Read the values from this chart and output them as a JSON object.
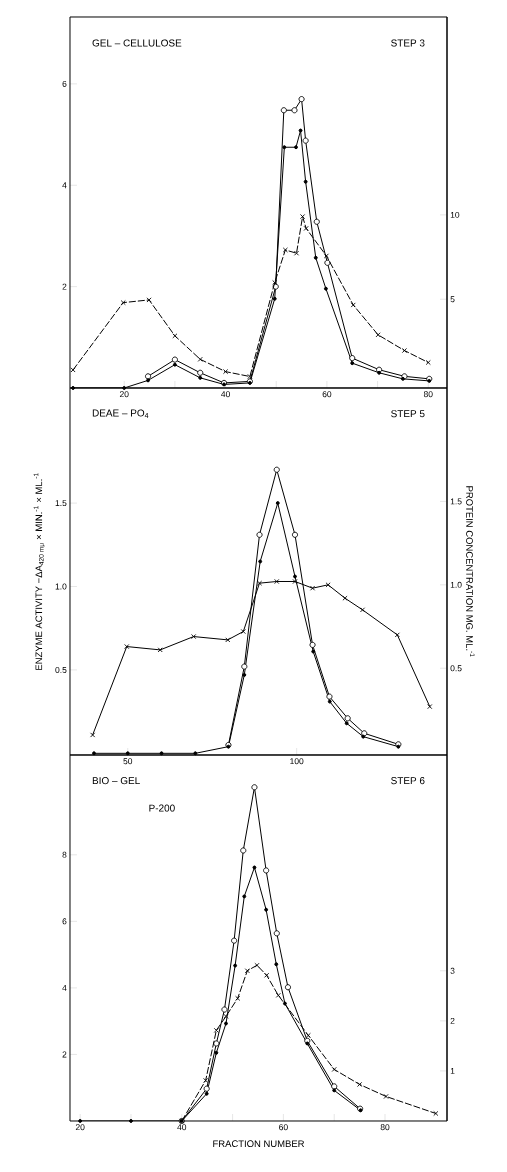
{
  "chart_data": [
    {
      "type": "line",
      "annotations": [
        "GEL – CELLULOSE",
        "STEP 3"
      ],
      "xlim": [
        9.3,
        83.7
      ],
      "ylim": [
        0,
        7.32
      ],
      "y2lim": [
        -0.26,
        21.73
      ],
      "xticks": [
        20,
        {
          "value": 30,
          "label": null
        },
        40,
        {
          "value": 50,
          "label": null
        },
        60,
        {
          "value": 70,
          "label": null
        },
        80
      ],
      "yticks": [
        2,
        4,
        6
      ],
      "y2ticks": [
        5,
        10
      ],
      "series": [
        {
          "color": "#000000",
          "marker": "circle",
          "line_style": "solid",
          "x": [
            24.7,
            30,
            35,
            39.7,
            44.8,
            49.9,
            51.5,
            53.6,
            55,
            55.8,
            58,
            60.1,
            65,
            70.3,
            75.3,
            80.2
          ],
          "values": [
            0.23,
            0.56,
            0.3,
            0.1,
            0.13,
            2.0,
            5.48,
            5.48,
            5.7,
            4.88,
            3.28,
            2.47,
            0.59,
            0.36,
            0.23,
            0.18
          ]
        },
        {
          "color": "#000000",
          "marker": "dot",
          "line_style": "solid",
          "x": [
            9.9,
            20,
            24.7,
            30,
            35,
            39.7,
            44.8,
            49.7,
            51.6,
            53.9,
            54.8,
            55.8,
            57.8,
            59.8,
            65,
            70.3,
            75,
            80.2
          ],
          "values": [
            0,
            0,
            0.15,
            0.46,
            0.2,
            0.07,
            0.1,
            1.76,
            4.75,
            4.75,
            5.08,
            4.07,
            2.57,
            1.96,
            0.49,
            0.3,
            0.18,
            0.14
          ]
        },
        {
          "color": "#000000",
          "marker": "cross",
          "line_style": "dashed",
          "axis": "y2",
          "x": [
            9.9,
            19.8,
            24.9,
            30,
            35,
            40,
            44.8,
            49.7,
            51.8,
            54,
            55.2,
            55.9,
            59.9,
            65.2,
            70.1,
            75.3,
            80
          ],
          "values": [
            0.81,
            4.8,
            4.96,
            2.83,
            1.44,
            0.71,
            0.42,
            5.99,
            7.92,
            7.73,
            9.9,
            9.2,
            7.57,
            4.66,
            2.89,
            1.96,
            1.25
          ]
        }
      ]
    },
    {
      "type": "line",
      "annotations": [
        "DEAE – PO$_{4}$",
        "STEP 5"
      ],
      "ylabel": "ENZYME ACTIVITY  −ΔA$_{420 mμ}$ × MIN.$^{-1}$ × ML.$^{-1}$",
      "y2label": "PROTEIN CONCENTRATION   MG. ML.$^{-1}$",
      "xlim": [
        32.9,
        144.5
      ],
      "ylim": [
        -0.01,
        2.19
      ],
      "y2lim": [
        -0.02,
        2.18
      ],
      "xticks": [
        50,
        100
      ],
      "yticks": [
        0.5,
        {
          "value": 1.0,
          "label": "1.0"
        },
        1.5
      ],
      "y2ticks": [
        0.5,
        {
          "value": 1.0,
          "label": "1.0"
        },
        1.5
      ],
      "series": [
        {
          "color": "#000000",
          "marker": "circle",
          "line_style": "solid",
          "x": [
            79.8,
            84.5,
            89,
            94.1,
            99.5,
            104.7,
            109.7,
            115.1,
            120,
            130.1
          ],
          "values": [
            0.05,
            0.52,
            1.31,
            1.7,
            1.31,
            0.65,
            0.34,
            0.21,
            0.12,
            0.054
          ]
        },
        {
          "color": "#000000",
          "marker": "dot",
          "line_style": "solid",
          "x": [
            40,
            50,
            60,
            70,
            79.8,
            84.5,
            89.2,
            94.4,
            99.5,
            104.9,
            109.8,
            114.8,
            119.7,
            130.1
          ],
          "values": [
            0,
            0,
            0,
            0,
            0.04,
            0.47,
            1.15,
            1.5,
            1.06,
            0.61,
            0.31,
            0.18,
            0.1,
            0.04
          ]
        },
        {
          "color": "#000000",
          "marker": "cross",
          "line_style": "solid",
          "axis": "y2",
          "x": [
            39.6,
            49.7,
            59.6,
            69.5,
            79.6,
            84.2,
            89,
            94.1,
            99.5,
            104.7,
            109.3,
            114.3,
            119.5,
            129.8,
            139.4
          ],
          "values": [
            0.1,
            0.63,
            0.61,
            0.69,
            0.67,
            0.72,
            1.01,
            1.02,
            1.02,
            0.98,
            1.0,
            0.92,
            0.85,
            0.7,
            0.27
          ]
        }
      ]
    },
    {
      "type": "line",
      "annotations": [
        "BIO – GEL",
        "STEP 6",
        "P-200"
      ],
      "xlabel": "FRACTION NUMBER",
      "xlim": [
        18,
        92.2
      ],
      "ylim": [
        0,
        11.0
      ],
      "y2lim": [
        0,
        7.31
      ],
      "xticks": [
        20,
        {
          "value": 30,
          "label": null
        },
        40,
        {
          "value": 50,
          "label": null
        },
        60,
        {
          "value": 70,
          "label": null
        },
        80
      ],
      "yticks": [
        2,
        4,
        6,
        8
      ],
      "y2ticks": [
        1,
        2,
        3
      ],
      "series": [
        {
          "color": "#000000",
          "marker": "circle",
          "line_style": "solid",
          "x": [
            40,
            44.9,
            46.8,
            48.4,
            50.3,
            52.1,
            54.3,
            56.6,
            58.7,
            60.9,
            64.7,
            70,
            75.1
          ],
          "values": [
            0,
            0.97,
            2.33,
            3.35,
            5.42,
            8.13,
            10.03,
            7.53,
            5.64,
            4.02,
            2.41,
            1.04,
            0.37
          ]
        },
        {
          "color": "#000000",
          "marker": "dot",
          "line_style": "solid",
          "x": [
            20,
            30,
            40,
            44.9,
            46.8,
            48.7,
            50.5,
            52.3,
            54.3,
            56.6,
            58.6,
            60.3,
            64.7,
            70,
            75.2
          ],
          "values": [
            0,
            0,
            0,
            0.82,
            2.05,
            2.93,
            4.67,
            6.75,
            7.62,
            6.35,
            4.71,
            3.53,
            2.33,
            0.92,
            0.32
          ]
        },
        {
          "color": "#000000",
          "marker": "cross",
          "line_style": "dashed",
          "axis": "y2",
          "x": [
            40,
            44.7,
            46.8,
            48.7,
            51,
            52.9,
            54.8,
            56.7,
            59,
            64.9,
            70,
            75,
            80.2,
            90
          ],
          "values": [
            0,
            0.81,
            1.81,
            2.09,
            2.45,
            3.0,
            3.11,
            2.91,
            2.51,
            1.71,
            1.03,
            0.73,
            0.49,
            0.15
          ]
        }
      ]
    }
  ]
}
